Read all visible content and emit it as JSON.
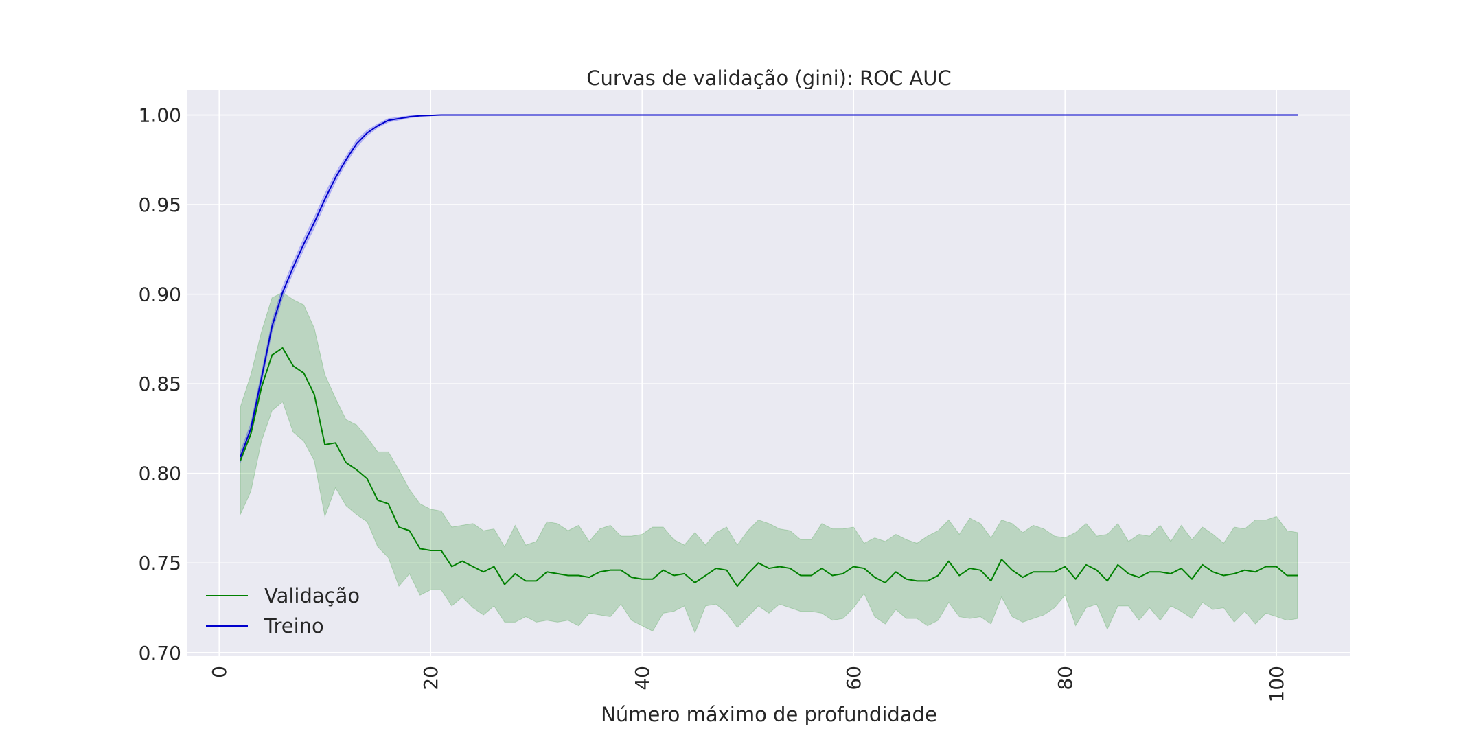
{
  "chart_data": {
    "type": "line",
    "title": "Curvas de validação (gini): ROC AUC",
    "xlabel": "Número máximo de profundidade",
    "ylabel": "",
    "xlim": [
      -3,
      107
    ],
    "ylim": [
      0.698,
      1.014
    ],
    "x_ticks": [
      0,
      20,
      40,
      60,
      80,
      100
    ],
    "y_ticks": [
      0.7,
      0.75,
      0.8,
      0.85,
      0.9,
      0.95,
      1.0
    ],
    "y_tick_labels": [
      "0.70",
      "0.75",
      "0.80",
      "0.85",
      "0.90",
      "0.95",
      "1.00"
    ],
    "x_tick_rotation": 90,
    "grid": true,
    "legend_position": "lower-left",
    "x": [
      2,
      3,
      4,
      5,
      6,
      7,
      8,
      9,
      10,
      11,
      12,
      13,
      14,
      15,
      16,
      17,
      18,
      19,
      20,
      21,
      22,
      23,
      24,
      25,
      26,
      27,
      28,
      29,
      30,
      31,
      32,
      33,
      34,
      35,
      36,
      37,
      38,
      39,
      40,
      41,
      42,
      43,
      44,
      45,
      46,
      47,
      48,
      49,
      50,
      51,
      52,
      53,
      54,
      55,
      56,
      57,
      58,
      59,
      60,
      61,
      62,
      63,
      64,
      65,
      66,
      67,
      68,
      69,
      70,
      71,
      72,
      73,
      74,
      75,
      76,
      77,
      78,
      79,
      80,
      81,
      82,
      83,
      84,
      85,
      86,
      87,
      88,
      89,
      90,
      91,
      92,
      93,
      94,
      95,
      96,
      97,
      98,
      99,
      100,
      101,
      102
    ],
    "series": [
      {
        "name": "Validação",
        "color": "#008000",
        "band_color": "#008000",
        "values": [
          0.807,
          0.822,
          0.848,
          0.866,
          0.87,
          0.86,
          0.856,
          0.844,
          0.816,
          0.817,
          0.806,
          0.802,
          0.797,
          0.785,
          0.783,
          0.77,
          0.768,
          0.758,
          0.757,
          0.757,
          0.748,
          0.751,
          0.748,
          0.745,
          0.748,
          0.738,
          0.744,
          0.74,
          0.74,
          0.745,
          0.744,
          0.743,
          0.743,
          0.742,
          0.745,
          0.746,
          0.746,
          0.742,
          0.741,
          0.741,
          0.746,
          0.743,
          0.744,
          0.739,
          0.743,
          0.747,
          0.746,
          0.737,
          0.744,
          0.75,
          0.747,
          0.748,
          0.747,
          0.743,
          0.743,
          0.747,
          0.743,
          0.744,
          0.748,
          0.747,
          0.742,
          0.739,
          0.745,
          0.741,
          0.74,
          0.74,
          0.743,
          0.751,
          0.743,
          0.747,
          0.746,
          0.74,
          0.752,
          0.746,
          0.742,
          0.745,
          0.745,
          0.745,
          0.748,
          0.741,
          0.749,
          0.746,
          0.74,
          0.749,
          0.744,
          0.742,
          0.745,
          0.745,
          0.744,
          0.747,
          0.741,
          0.749,
          0.745,
          0.743,
          0.744,
          0.746,
          0.745,
          0.748,
          0.748,
          0.743,
          0.743
        ],
        "lower": [
          0.777,
          0.79,
          0.818,
          0.835,
          0.84,
          0.823,
          0.818,
          0.807,
          0.776,
          0.792,
          0.782,
          0.777,
          0.773,
          0.759,
          0.753,
          0.737,
          0.744,
          0.732,
          0.735,
          0.735,
          0.726,
          0.731,
          0.725,
          0.721,
          0.726,
          0.717,
          0.717,
          0.72,
          0.717,
          0.718,
          0.717,
          0.718,
          0.715,
          0.722,
          0.721,
          0.72,
          0.727,
          0.718,
          0.715,
          0.712,
          0.722,
          0.723,
          0.726,
          0.711,
          0.726,
          0.727,
          0.722,
          0.714,
          0.72,
          0.726,
          0.722,
          0.727,
          0.725,
          0.723,
          0.723,
          0.722,
          0.718,
          0.719,
          0.725,
          0.733,
          0.72,
          0.716,
          0.724,
          0.719,
          0.719,
          0.715,
          0.718,
          0.728,
          0.72,
          0.719,
          0.72,
          0.716,
          0.731,
          0.72,
          0.717,
          0.719,
          0.721,
          0.725,
          0.732,
          0.715,
          0.725,
          0.727,
          0.713,
          0.726,
          0.726,
          0.718,
          0.725,
          0.718,
          0.726,
          0.723,
          0.719,
          0.728,
          0.724,
          0.725,
          0.717,
          0.723,
          0.716,
          0.722,
          0.72,
          0.718,
          0.719
        ],
        "upper": [
          0.837,
          0.855,
          0.879,
          0.898,
          0.901,
          0.897,
          0.894,
          0.881,
          0.855,
          0.842,
          0.83,
          0.827,
          0.82,
          0.812,
          0.812,
          0.802,
          0.791,
          0.783,
          0.78,
          0.779,
          0.77,
          0.771,
          0.772,
          0.768,
          0.769,
          0.759,
          0.771,
          0.76,
          0.762,
          0.773,
          0.772,
          0.768,
          0.771,
          0.762,
          0.769,
          0.771,
          0.765,
          0.765,
          0.766,
          0.77,
          0.77,
          0.763,
          0.76,
          0.767,
          0.76,
          0.767,
          0.77,
          0.76,
          0.768,
          0.774,
          0.772,
          0.769,
          0.768,
          0.763,
          0.763,
          0.772,
          0.769,
          0.769,
          0.77,
          0.761,
          0.764,
          0.762,
          0.766,
          0.763,
          0.761,
          0.765,
          0.768,
          0.774,
          0.766,
          0.775,
          0.772,
          0.764,
          0.774,
          0.772,
          0.767,
          0.771,
          0.769,
          0.765,
          0.764,
          0.767,
          0.772,
          0.765,
          0.766,
          0.772,
          0.762,
          0.766,
          0.765,
          0.771,
          0.762,
          0.771,
          0.763,
          0.77,
          0.766,
          0.761,
          0.77,
          0.769,
          0.774,
          0.774,
          0.776,
          0.768,
          0.767
        ]
      },
      {
        "name": "Treino",
        "color": "#0000cc",
        "band_color": "#0000ff",
        "values": [
          0.809,
          0.825,
          0.853,
          0.882,
          0.901,
          0.915,
          0.928,
          0.94,
          0.953,
          0.965,
          0.975,
          0.984,
          0.99,
          0.994,
          0.997,
          0.998,
          0.999,
          0.9996,
          0.9998,
          1.0,
          1.0,
          1.0,
          1.0,
          1.0,
          1.0,
          1.0,
          1.0,
          1.0,
          1.0,
          1.0,
          1.0,
          1.0,
          1.0,
          1.0,
          1.0,
          1.0,
          1.0,
          1.0,
          1.0,
          1.0,
          1.0,
          1.0,
          1.0,
          1.0,
          1.0,
          1.0,
          1.0,
          1.0,
          1.0,
          1.0,
          1.0,
          1.0,
          1.0,
          1.0,
          1.0,
          1.0,
          1.0,
          1.0,
          1.0,
          1.0,
          1.0,
          1.0,
          1.0,
          1.0,
          1.0,
          1.0,
          1.0,
          1.0,
          1.0,
          1.0,
          1.0,
          1.0,
          1.0,
          1.0,
          1.0,
          1.0,
          1.0,
          1.0,
          1.0,
          1.0,
          1.0,
          1.0,
          1.0,
          1.0,
          1.0,
          1.0,
          1.0,
          1.0,
          1.0,
          1.0,
          1.0,
          1.0,
          1.0,
          1.0,
          1.0,
          1.0,
          1.0,
          1.0,
          1.0,
          1.0,
          1.0
        ],
        "band_halfwidth": [
          0.003,
          0.003,
          0.003,
          0.003,
          0.003,
          0.003,
          0.003,
          0.003,
          0.003,
          0.0025,
          0.002,
          0.002,
          0.0015,
          0.001,
          0.001,
          0.0008,
          0.0006,
          0.0004,
          0.0002,
          0,
          0,
          0,
          0,
          0,
          0,
          0,
          0,
          0,
          0,
          0,
          0,
          0,
          0,
          0,
          0,
          0,
          0,
          0,
          0,
          0,
          0,
          0,
          0,
          0,
          0,
          0,
          0,
          0,
          0,
          0,
          0,
          0,
          0,
          0,
          0,
          0,
          0,
          0,
          0,
          0,
          0,
          0,
          0,
          0,
          0,
          0,
          0,
          0,
          0,
          0,
          0,
          0,
          0,
          0,
          0,
          0,
          0,
          0,
          0,
          0,
          0,
          0,
          0,
          0,
          0,
          0,
          0,
          0,
          0,
          0,
          0,
          0,
          0,
          0,
          0,
          0,
          0,
          0,
          0,
          0,
          0
        ]
      }
    ]
  },
  "colors": {
    "plot_background": "#eaeaf2",
    "grid": "#ffffff",
    "text": "#262626"
  }
}
